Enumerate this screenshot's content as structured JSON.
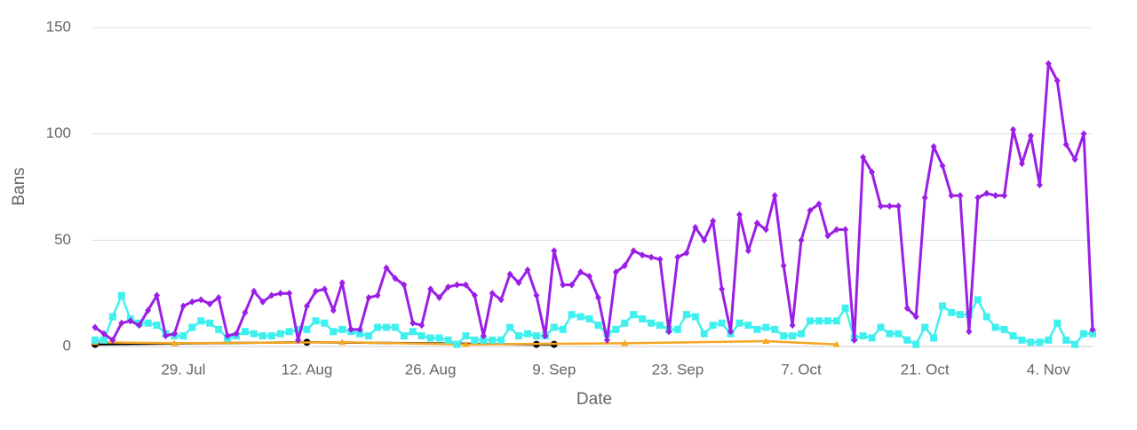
{
  "chart_data": {
    "type": "line",
    "x_label": "Date",
    "y_label": "Bans",
    "x": [
      "19. Jul",
      "20. Jul",
      "21. Jul",
      "22. Jul",
      "23. Jul",
      "24. Jul",
      "25. Jul",
      "26. Jul",
      "27. Jul",
      "28. Jul",
      "29. Jul",
      "30. Jul",
      "31. Jul",
      "1. Aug",
      "2. Aug",
      "3. Aug",
      "4. Aug",
      "5. Aug",
      "6. Aug",
      "7. Aug",
      "8. Aug",
      "9. Aug",
      "10. Aug",
      "11. Aug",
      "12. Aug",
      "13. Aug",
      "14. Aug",
      "15. Aug",
      "16. Aug",
      "17. Aug",
      "18. Aug",
      "19. Aug",
      "20. Aug",
      "21. Aug",
      "22. Aug",
      "23. Aug",
      "24. Aug",
      "25. Aug",
      "26. Aug",
      "27. Aug",
      "28. Aug",
      "29. Aug",
      "30. Aug",
      "31. Aug",
      "1. Sep",
      "2. Sep",
      "3. Sep",
      "4. Sep",
      "5. Sep",
      "6. Sep",
      "7. Sep",
      "8. Sep",
      "9. Sep",
      "10. Sep",
      "11. Sep",
      "12. Sep",
      "13. Sep",
      "14. Sep",
      "15. Sep",
      "16. Sep",
      "17. Sep",
      "18. Sep",
      "19. Sep",
      "20. Sep",
      "21. Sep",
      "22. Sep",
      "23. Sep",
      "24. Sep",
      "25. Sep",
      "26. Sep",
      "27. Sep",
      "28. Sep",
      "29. Sep",
      "30. Sep",
      "1. Oct",
      "2. Oct",
      "3. Oct",
      "4. Oct",
      "5. Oct",
      "6. Oct",
      "7. Oct",
      "8. Oct",
      "9. Oct",
      "10. Oct",
      "11. Oct",
      "12. Oct",
      "13. Oct",
      "14. Oct",
      "15. Oct",
      "16. Oct",
      "17. Oct",
      "18. Oct",
      "19. Oct",
      "20. Oct",
      "21. Oct",
      "22. Oct",
      "23. Oct",
      "24. Oct",
      "25. Oct",
      "26. Oct",
      "27. Oct",
      "28. Oct",
      "29. Oct",
      "30. Oct",
      "31. Oct",
      "1. Nov",
      "2. Nov",
      "3. Nov",
      "4. Nov",
      "5. Nov",
      "6. Nov",
      "7. Nov",
      "8. Nov",
      "9. Nov"
    ],
    "xticks": [
      "29. Jul",
      "12. Aug",
      "26. Aug",
      "9. Sep",
      "23. Sep",
      "7. Oct",
      "21. Oct",
      "4. Nov"
    ],
    "ylim": [
      0,
      150
    ],
    "yticks": [
      0,
      50,
      100,
      150
    ],
    "grid": true,
    "series": [
      {
        "color": "#000000",
        "marker": "circle",
        "x": [
          "19. Jul",
          "12. Aug",
          "7. Sep",
          "9. Sep"
        ],
        "values": [
          1,
          2,
          1,
          1
        ]
      },
      {
        "color": "#f5a623",
        "marker": "triangle",
        "x": [
          "19. Jul",
          "28. Jul",
          "16. Aug",
          "30. Aug",
          "17. Sep",
          "3. Oct",
          "11. Oct"
        ],
        "values": [
          2,
          1.5,
          2,
          1,
          1.5,
          2.5,
          1
        ]
      },
      {
        "color": "#3ff0ee",
        "marker": "square",
        "values": [
          3,
          3,
          14,
          24,
          13,
          11,
          11,
          10,
          6,
          5,
          5,
          9,
          12,
          11,
          8,
          4,
          5,
          7,
          6,
          5,
          5,
          6,
          7,
          8,
          8,
          12,
          11,
          7,
          8,
          7,
          6,
          5,
          9,
          9,
          9,
          5,
          7,
          5,
          4,
          4,
          3,
          1,
          5,
          3,
          3,
          3,
          3,
          9,
          5,
          6,
          5,
          5,
          9,
          8,
          15,
          14,
          13,
          10,
          6,
          8,
          11,
          15,
          13,
          11,
          10,
          8,
          8,
          15,
          14,
          6,
          10,
          11,
          6,
          11,
          10,
          8,
          9,
          8,
          5,
          5,
          6,
          12,
          12,
          12,
          12,
          18,
          4,
          5,
          4,
          9,
          6,
          6,
          3,
          1,
          9,
          4,
          19,
          16,
          15,
          15,
          22,
          14,
          9,
          8,
          5,
          3,
          2,
          2,
          3,
          11,
          3,
          1,
          6,
          6
        ]
      },
      {
        "color": "#9b1ee6",
        "marker": "diamond",
        "values": [
          9,
          6,
          3,
          11,
          12,
          10,
          17,
          24,
          5,
          6,
          19,
          21,
          22,
          20,
          23,
          5,
          6,
          16,
          26,
          21,
          24,
          25,
          25,
          3,
          19,
          26,
          27,
          17,
          30,
          8,
          8,
          23,
          24,
          37,
          32,
          29,
          11,
          10,
          27,
          23,
          28,
          29,
          29,
          24,
          5,
          25,
          22,
          34,
          30,
          36,
          24,
          5,
          45,
          29,
          29,
          35,
          33,
          23,
          3,
          35,
          38,
          45,
          43,
          42,
          41,
          7,
          42,
          44,
          56,
          50,
          59,
          27,
          7,
          62,
          45,
          58,
          55,
          71,
          38,
          10,
          50,
          64,
          67,
          52,
          55,
          55,
          3,
          89,
          82,
          66,
          66,
          66,
          18,
          14,
          70,
          94,
          85,
          71,
          71,
          7,
          70,
          72,
          71,
          71,
          102,
          86,
          99,
          76,
          133,
          125,
          95,
          88,
          100,
          8
        ]
      }
    ]
  }
}
